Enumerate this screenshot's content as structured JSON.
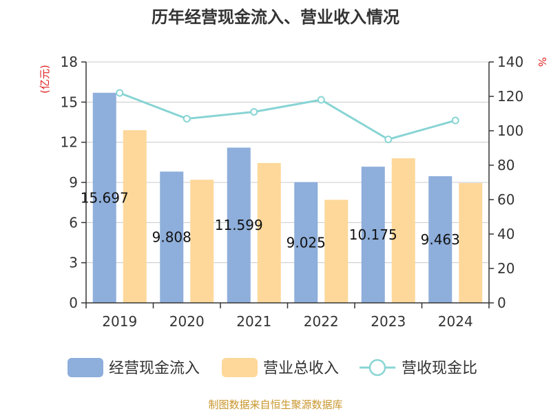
{
  "chart_data": {
    "type": "bar+line",
    "title": "历年经营现金流入、营业收入情况",
    "categories": [
      "2019",
      "2020",
      "2021",
      "2022",
      "2023",
      "2024"
    ],
    "series": [
      {
        "name": "经营现金流入",
        "type": "bar",
        "axis": "left",
        "color": "#8eaedb",
        "values": [
          15.697,
          9.808,
          11.599,
          9.025,
          10.175,
          9.463
        ],
        "labels": [
          "15.697",
          "9.808",
          "11.599",
          "9.025",
          "10.175",
          "9.463"
        ]
      },
      {
        "name": "营业总收入",
        "type": "bar",
        "axis": "left",
        "color": "#fdd89a",
        "values": [
          12.9,
          9.2,
          10.45,
          7.7,
          10.8,
          8.95
        ]
      },
      {
        "name": "营收现金比",
        "type": "line",
        "axis": "right",
        "color": "#88d4d4",
        "values": [
          122,
          107,
          111,
          118,
          95,
          106
        ]
      }
    ],
    "y_left": {
      "label": "(亿元)",
      "min": 0,
      "max": 18,
      "ticks": [
        "0",
        "3",
        "6",
        "9",
        "12",
        "15",
        "18"
      ]
    },
    "y_right": {
      "label": "%",
      "min": 0,
      "max": 140,
      "ticks": [
        "0",
        "20",
        "40",
        "60",
        "80",
        "100",
        "120",
        "140"
      ]
    },
    "grid": true,
    "legend": "bottom"
  },
  "source": "制图数据来自恒生聚源数据库"
}
